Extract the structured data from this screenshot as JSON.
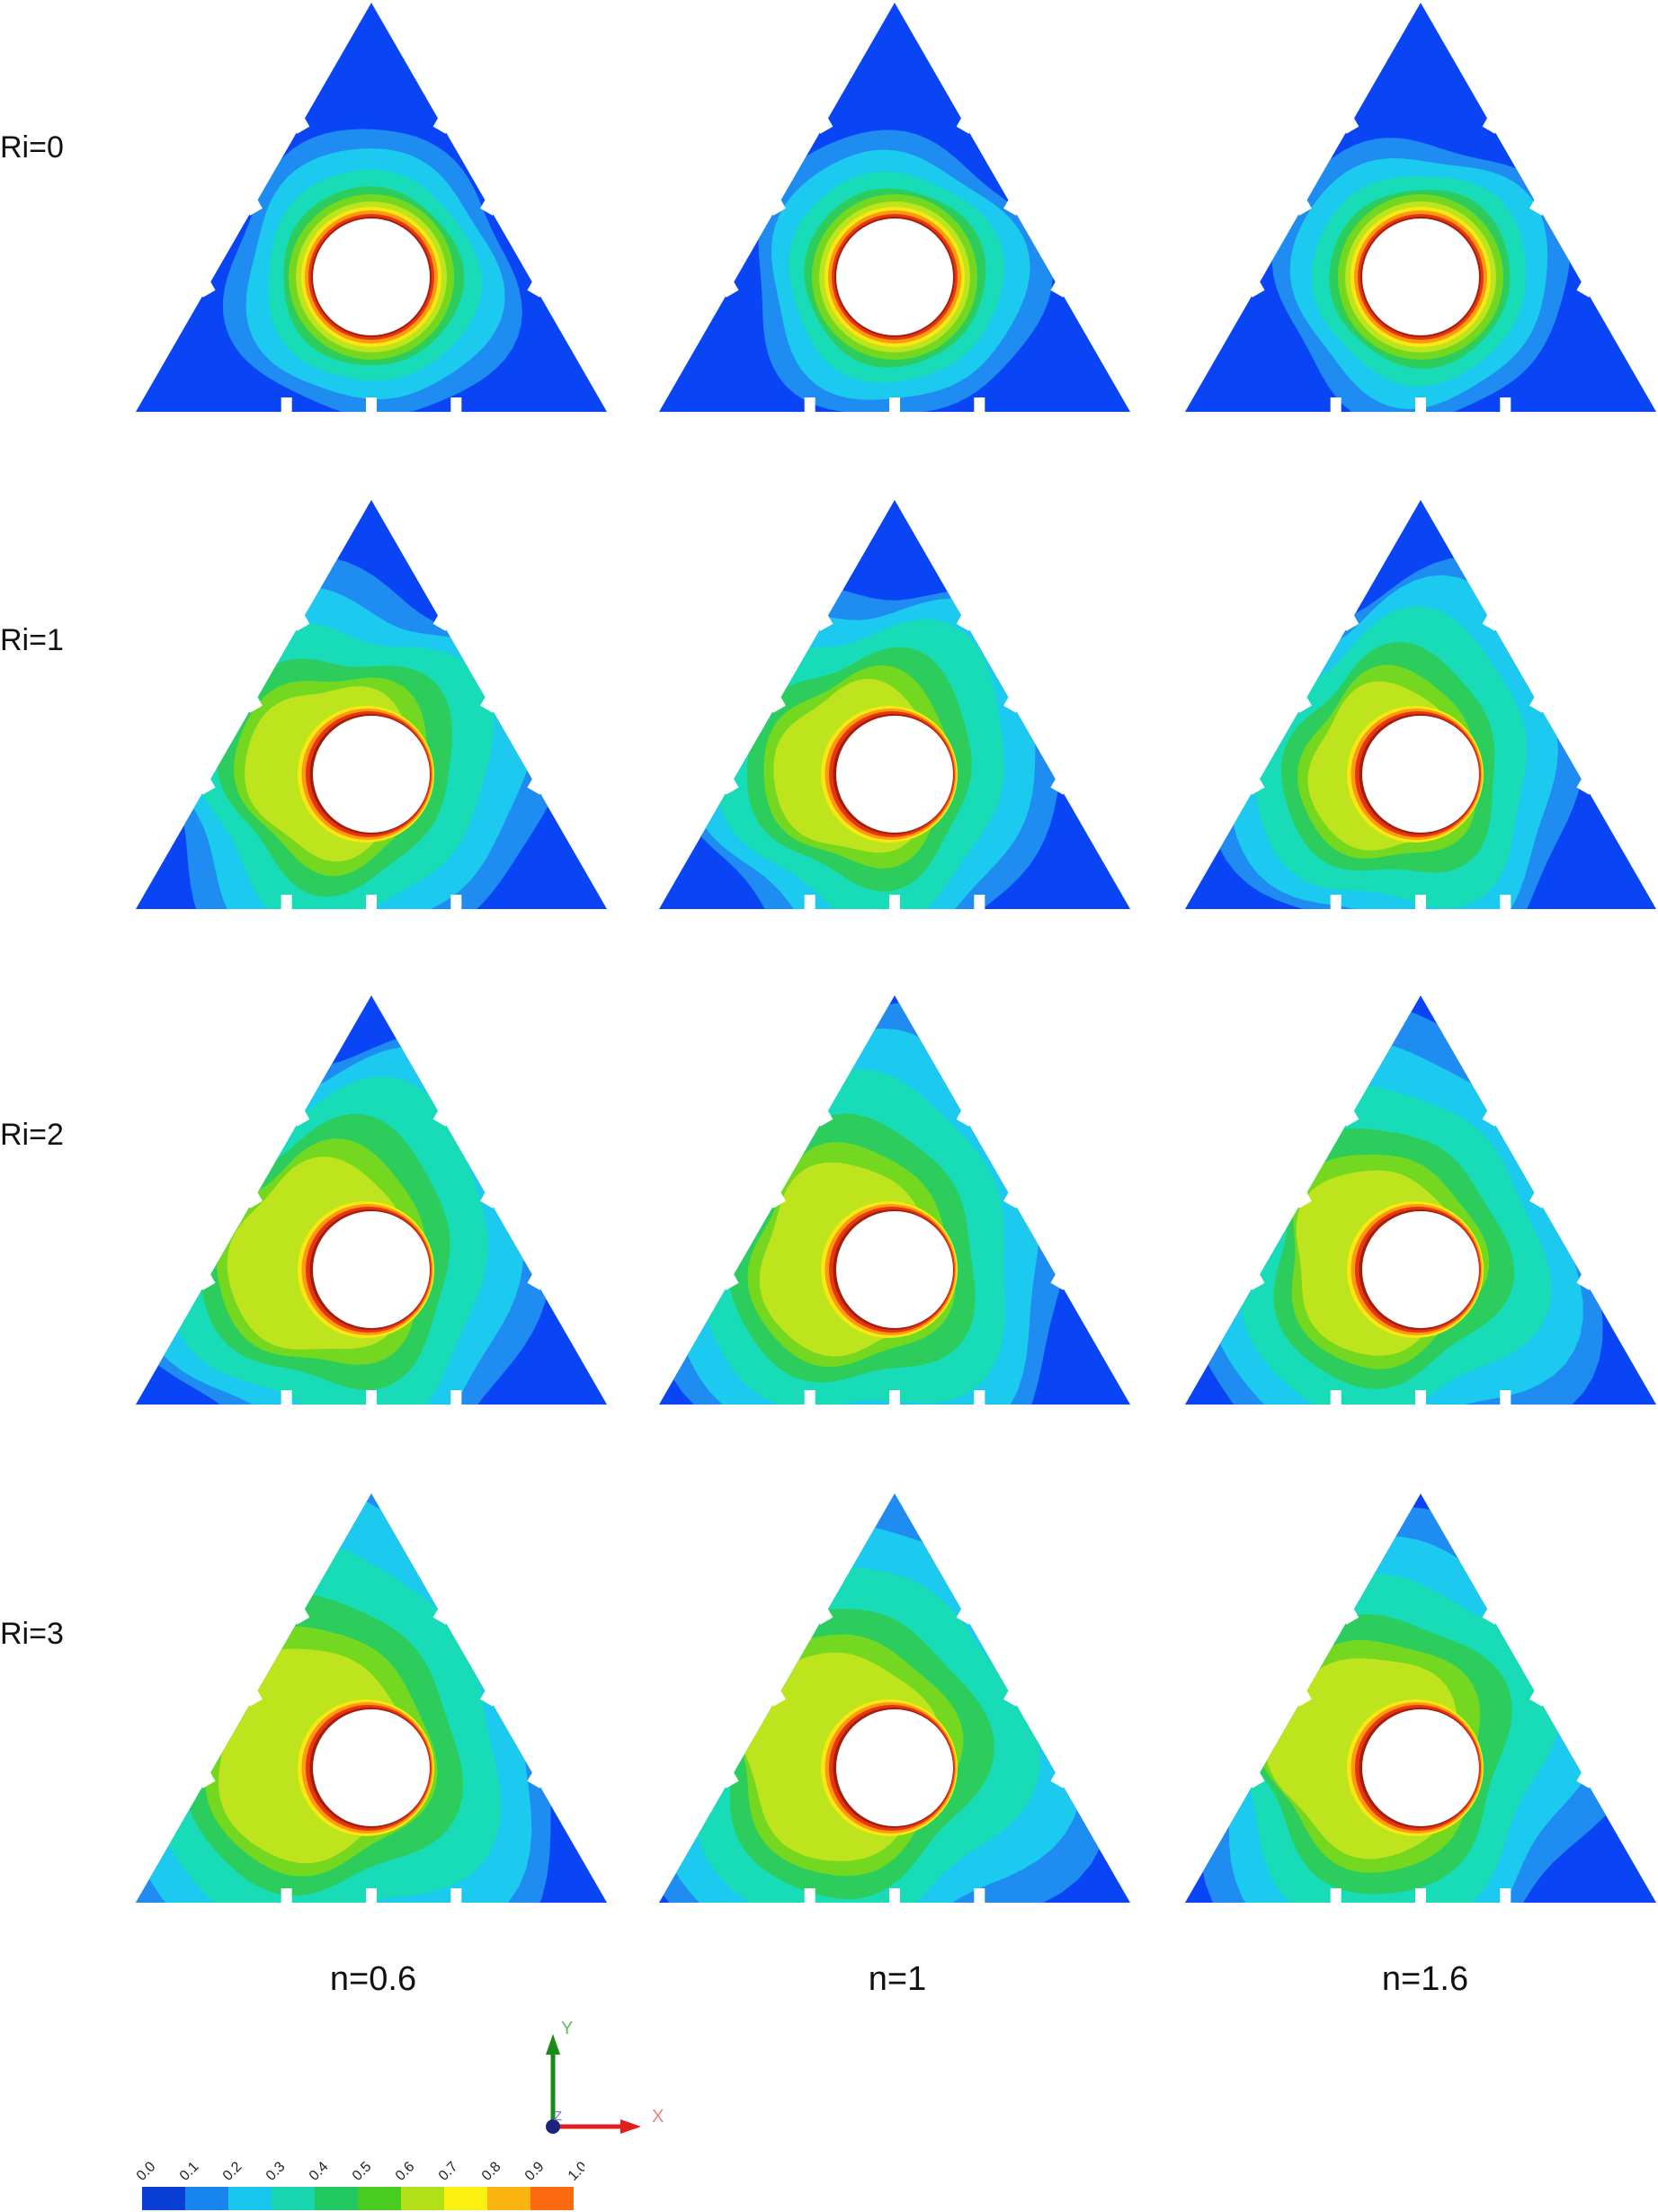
{
  "rows": [
    {
      "label": "Ri=0",
      "ri": 0
    },
    {
      "label": "Ri=1",
      "ri": 1
    },
    {
      "label": "Ri=2",
      "ri": 2
    },
    {
      "label": "Ri=3",
      "ri": 3
    }
  ],
  "columns": [
    {
      "label": "n=0.6",
      "n": 0.6
    },
    {
      "label": "n=1",
      "n": 1
    },
    {
      "label": "n=1.6",
      "n": 1.6
    }
  ],
  "axes": {
    "x": "X",
    "y": "Y",
    "z": "Z"
  },
  "colorbar": {
    "ticks": [
      "0.0",
      "0.1",
      "0.2",
      "0.3",
      "0.4",
      "0.5",
      "0.6",
      "0.7",
      "0.8",
      "0.9",
      "1.0"
    ],
    "colors": [
      "#0a3fd6",
      "#1886ee",
      "#19c6ee",
      "#19d6b0",
      "#21c860",
      "#49cc20",
      "#b2e018",
      "#fcf010",
      "#fcb410",
      "#fc6a10"
    ]
  },
  "palette": {
    "outer": "#0a45f5",
    "c1": "#1e8cf0",
    "c2": "#1ccaf0",
    "c3": "#18dcb8",
    "c4": "#2ccd5c",
    "c5": "#74d820",
    "c6": "#bde41c",
    "ring_yellow": "#fae812",
    "ring_orange": "#fc9a12",
    "ring_red": "#ea3410",
    "ring_edge": "#a02010"
  }
}
